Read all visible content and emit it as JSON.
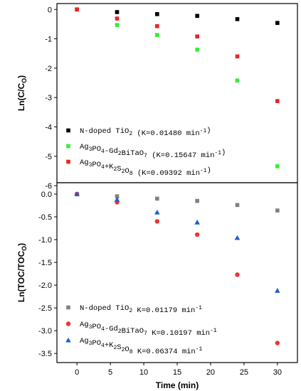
{
  "chart_data": [
    {
      "type": "scatter",
      "title": "",
      "ylabel": "Ln(C/C_O)",
      "ylabel_main": "Ln(C/C",
      "ylabel_sub": "O",
      "ylabel_end": ")",
      "xlim": [
        -3,
        33
      ],
      "ylim": [
        -5.9,
        0.2
      ],
      "yticks": [
        0,
        -1,
        -2,
        -3,
        -4,
        -5,
        -6
      ],
      "ytick_labels": [
        "0",
        "-1",
        "-2",
        "-3",
        "-4",
        "-5",
        "-6"
      ],
      "x": [
        0,
        6,
        12,
        18,
        24,
        30
      ],
      "legend_position": "bottom-left",
      "series": [
        {
          "name": "N-doped TiO2 (K=0.01480 min-1)",
          "marker": "square",
          "color": "#000000",
          "values": [
            0,
            -0.09,
            -0.16,
            -0.22,
            -0.33,
            -0.46
          ],
          "legend": {
            "a": "N-doped TiO",
            "a_sub": "2",
            "b": " (K=0.01480 min",
            "b_sup": "-1",
            "c": ")"
          }
        },
        {
          "name": "Ag3PO4-Gd2BiTaO7 (K=0.15647 min-1)",
          "marker": "square",
          "color": "#33ee33",
          "values": [
            0,
            -0.53,
            -0.87,
            -1.37,
            -2.42,
            -5.34
          ],
          "legend": {
            "a": "Ag",
            "a_sub": "3",
            "b": "PO",
            "b_sub": "4",
            "c": "-Gd",
            "c_sub": "2",
            "d": "BiTaO",
            "d_sub": "7",
            "e": " (K=0.15647 min",
            "e_sup": "-1",
            "f": ")"
          }
        },
        {
          "name": "Ag3PO4+K2S2O8 (K=0.09392 min-1)",
          "marker": "square",
          "color": "#ee2222",
          "values": [
            0,
            -0.31,
            -0.57,
            -0.92,
            -1.6,
            -3.12
          ],
          "legend": {
            "a": "Ag",
            "a_sub": "3",
            "b": "PO",
            "b_sub": "4",
            "c": "+K",
            "c_sub": "2",
            "d": "S",
            "d_sub": "2",
            "e": "O",
            "e_sub": "8",
            "f": " (K=0.09392 min",
            "f_sup": "-1",
            "g": ")"
          }
        }
      ]
    },
    {
      "type": "scatter",
      "title": "",
      "ylabel": "Ln(TOC/TOC_O)",
      "ylabel_main": "Ln(TOC/TOC",
      "ylabel_sub": "O",
      "ylabel_end": ")",
      "xlabel": "Time (min)",
      "xlim": [
        -3,
        33
      ],
      "ylim": [
        -3.7,
        0.25
      ],
      "xticks": [
        0,
        5,
        10,
        15,
        20,
        25,
        30
      ],
      "xtick_labels": [
        "0",
        "5",
        "10",
        "15",
        "20",
        "25",
        "30"
      ],
      "yticks": [
        0.0,
        -0.5,
        -1.0,
        -1.5,
        -2.0,
        -2.5,
        -3.0,
        -3.5
      ],
      "ytick_labels": [
        "0.0",
        "-0.5",
        "-1.0",
        "-1.5",
        "-2.0",
        "-2.5",
        "-3.0",
        "-3.5"
      ],
      "x": [
        0,
        6,
        12,
        18,
        24,
        30
      ],
      "legend_position": "bottom-left",
      "series": [
        {
          "name": "N-doped TiO2 K=0.01179 min-1",
          "marker": "square",
          "color": "#808080",
          "values": [
            0,
            -0.05,
            -0.1,
            -0.15,
            -0.24,
            -0.36
          ],
          "legend": {
            "a": "N-doped TiO",
            "a_sub": "2",
            "b": " K=0.01179 min",
            "b_sup": "-1"
          }
        },
        {
          "name": "Ag3PO4-Gd2BiTaO7 K=0.10197 min-1",
          "marker": "circle",
          "color": "#ee3333",
          "values": [
            0,
            -0.18,
            -0.6,
            -0.89,
            -1.77,
            -3.27
          ],
          "legend": {
            "a": "Ag",
            "a_sub": "3",
            "b": "PO",
            "b_sub": "4",
            "c": "-Gd",
            "c_sub": "2",
            "d": "BiTaO",
            "d_sub": "7",
            "e": " K=0.10197 min",
            "e_sup": "-1"
          }
        },
        {
          "name": "Ag3PO4+K2S2O8 K=0.06374 min-1",
          "marker": "triangle",
          "color": "#1f5fcc",
          "values": [
            0,
            -0.12,
            -0.4,
            -0.62,
            -0.96,
            -2.12
          ],
          "legend": {
            "a": "Ag",
            "a_sub": "3",
            "b": "PO",
            "b_sub": "4",
            "c": "+K",
            "c_sub": "2",
            "d": "S",
            "d_sub": "2",
            "e": "O",
            "e_sub": "8",
            "f": " K=0.06374 min",
            "f_sup": "-1"
          }
        }
      ]
    }
  ]
}
